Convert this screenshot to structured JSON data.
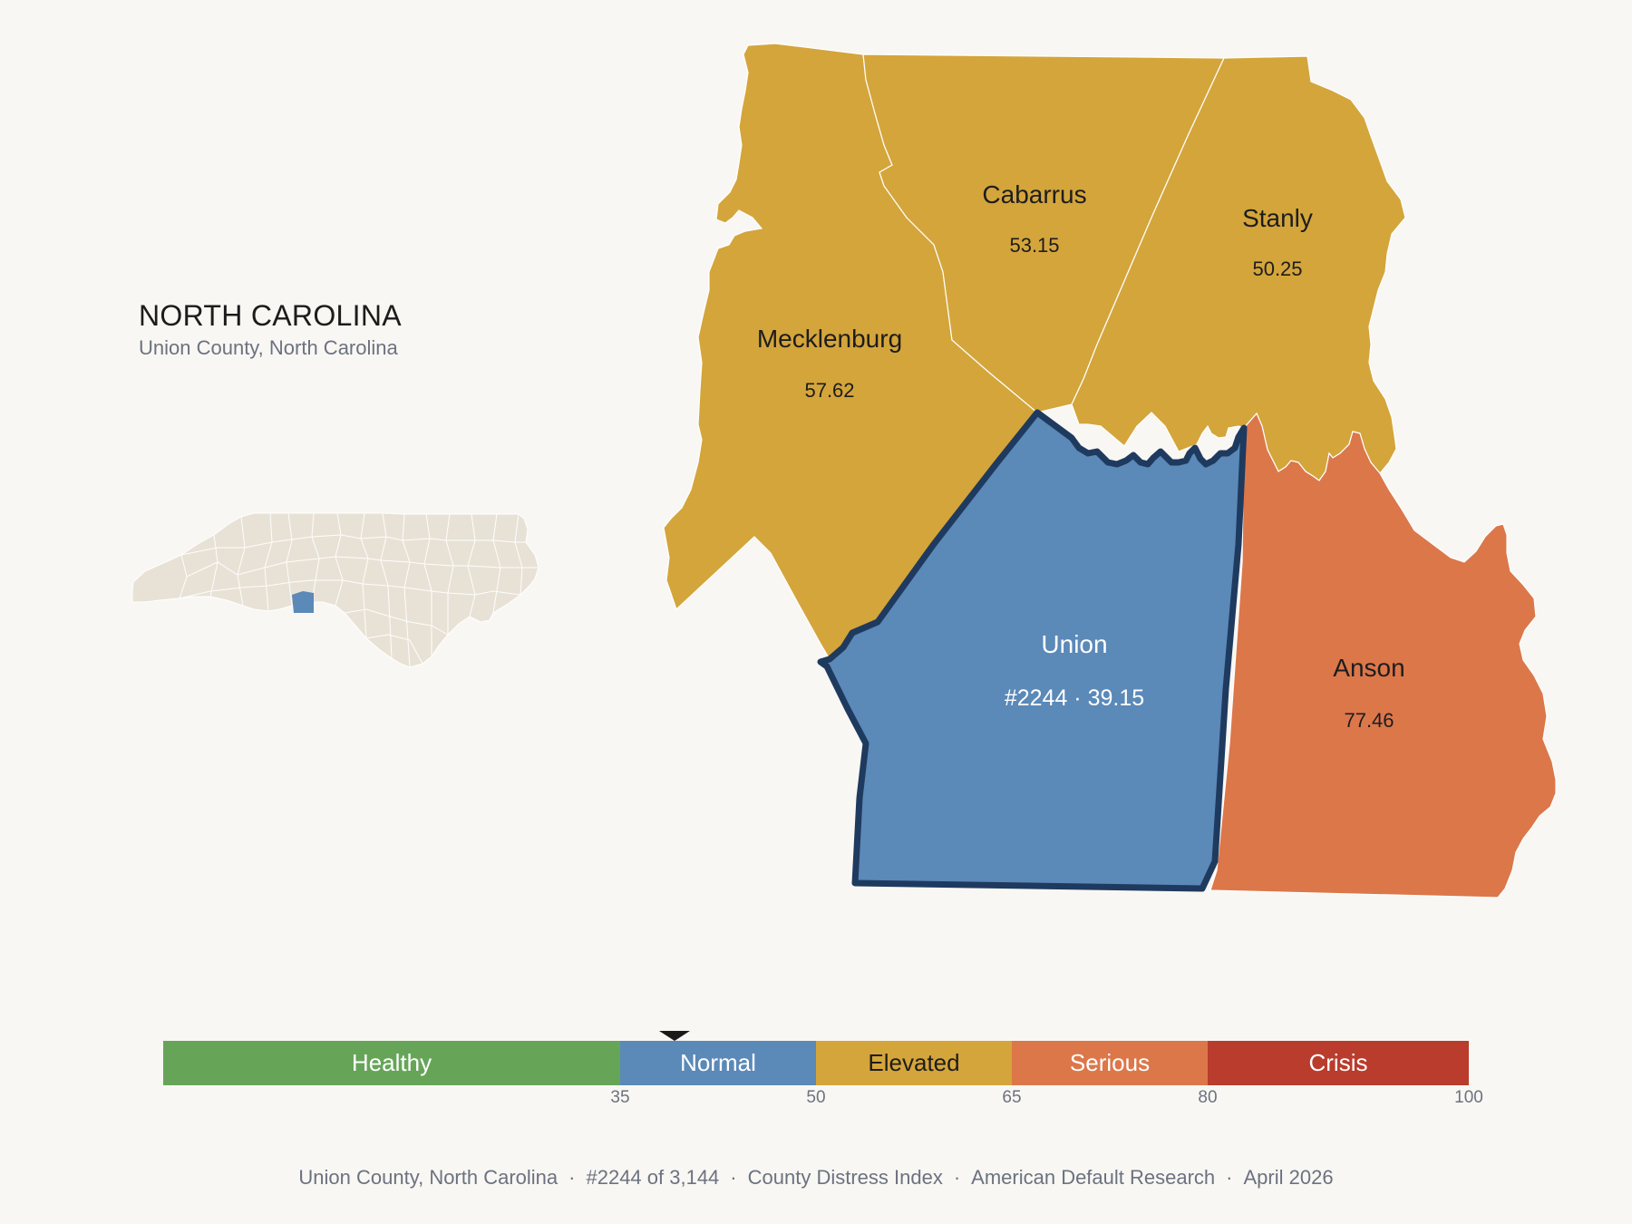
{
  "header": {
    "title": "NORTH CAROLINA",
    "subtitle": "Union County, North Carolina"
  },
  "colors": {
    "healthy": "#66a558",
    "normal": "#5b89b8",
    "elevated": "#d4a53b",
    "serious": "#dc774a",
    "crisis": "#b93c2c",
    "highlight_outline": "#1f3a5f",
    "inset_fill": "#e8e2d6",
    "background": "#f9f7f3"
  },
  "counties": [
    {
      "name": "Mecklenburg",
      "value": "57.62",
      "category": "elevated"
    },
    {
      "name": "Cabarrus",
      "value": "53.15",
      "category": "elevated"
    },
    {
      "name": "Stanly",
      "value": "50.25",
      "category": "elevated"
    },
    {
      "name": "Union",
      "value": "#2244 · 39.15",
      "category": "normal",
      "highlight": true
    },
    {
      "name": "Anson",
      "value": "77.46",
      "category": "serious"
    }
  ],
  "legend": {
    "segments": [
      {
        "label": "Healthy",
        "from": 0,
        "to": 35,
        "color": "#66a558",
        "text_color": "#ffffff"
      },
      {
        "label": "Normal",
        "from": 35,
        "to": 50,
        "color": "#5b89b8",
        "text_color": "#ffffff"
      },
      {
        "label": "Elevated",
        "from": 50,
        "to": 65,
        "color": "#d4a53b",
        "text_color": "#1d1d1d"
      },
      {
        "label": "Serious",
        "from": 65,
        "to": 80,
        "color": "#dc774a",
        "text_color": "#ffffff"
      },
      {
        "label": "Crisis",
        "from": 80,
        "to": 100,
        "color": "#b93c2c",
        "text_color": "#ffffff"
      }
    ],
    "ticks": [
      "35",
      "50",
      "65",
      "80",
      "100"
    ],
    "marker_value": 39.15
  },
  "footer": {
    "county": "Union County, North Carolina",
    "rank": "#2244 of 3,144",
    "index": "County Distress Index",
    "source": "American Default Research",
    "date": "April 2026"
  }
}
